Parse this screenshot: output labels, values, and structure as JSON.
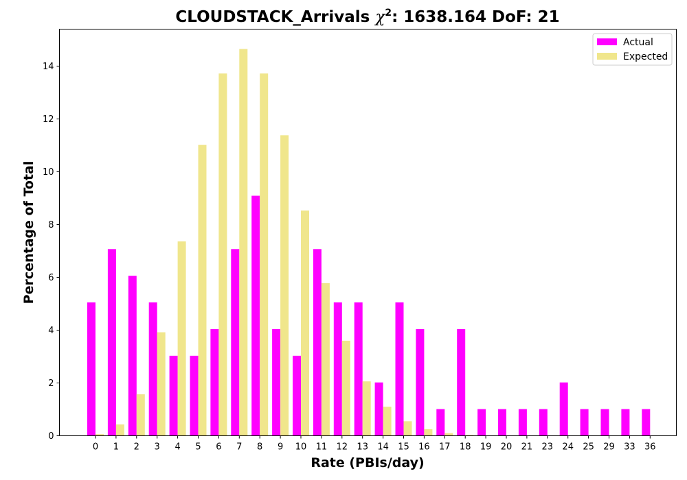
{
  "chart_data": {
    "type": "bar",
    "title_main": "CLOUDSTACK_Arrivals ",
    "title_chi": "χ",
    "title_sup": "2",
    "title_rest": ": 1638.164 DoF: 21",
    "xlabel": "Rate (PBIs/day)",
    "ylabel": "Percentage of Total",
    "ylim": [
      0,
      15.4
    ],
    "yticks": [
      0,
      2,
      4,
      6,
      8,
      10,
      12,
      14
    ],
    "grid": false,
    "legend_position": "top-right",
    "categories": [
      "0",
      "1",
      "2",
      "3",
      "4",
      "5",
      "6",
      "7",
      "8",
      "9",
      "10",
      "11",
      "12",
      "13",
      "14",
      "15",
      "16",
      "17",
      "18",
      "19",
      "20",
      "21",
      "23",
      "24",
      "25",
      "29",
      "33",
      "36"
    ],
    "series": [
      {
        "name": "Actual",
        "color": "#ff00ff",
        "values": [
          5.05,
          7.07,
          6.06,
          5.05,
          3.03,
          3.03,
          4.04,
          7.07,
          9.09,
          4.04,
          3.03,
          7.07,
          5.05,
          5.05,
          2.02,
          5.05,
          4.04,
          1.01,
          4.04,
          1.01,
          1.01,
          1.01,
          1.01,
          2.02,
          1.01,
          1.01,
          1.01,
          1.01
        ]
      },
      {
        "name": "Expected",
        "color": "#f0e68c",
        "values": [
          0.06,
          0.43,
          1.57,
          3.92,
          7.36,
          11.02,
          13.72,
          14.65,
          13.72,
          11.38,
          8.53,
          5.78,
          3.6,
          2.06,
          1.1,
          0.55,
          0.25,
          0.1,
          0.03,
          0.01,
          0,
          0,
          0,
          0,
          0,
          0,
          0,
          0
        ]
      }
    ]
  }
}
